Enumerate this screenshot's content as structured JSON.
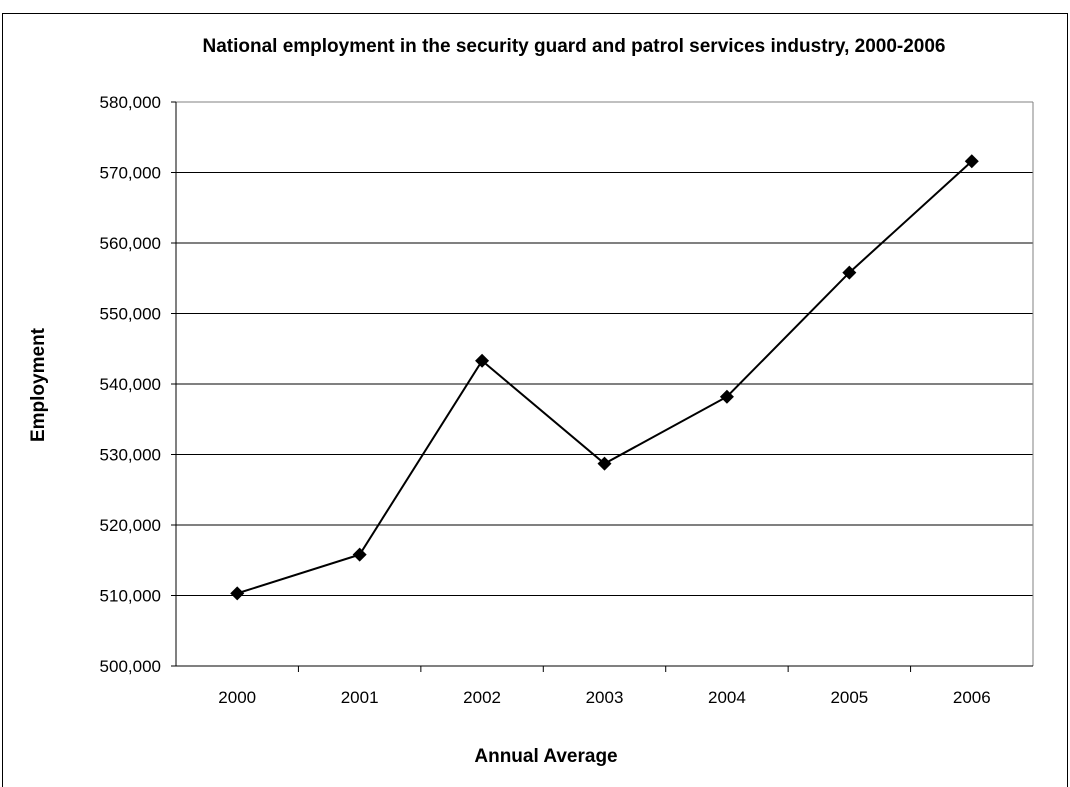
{
  "chart_data": {
    "type": "line",
    "title": "National employment in the security guard and patrol services industry, 2000-2006",
    "xlabel": "Annual Average",
    "ylabel": "Employment",
    "categories": [
      "2000",
      "2001",
      "2002",
      "2003",
      "2004",
      "2005",
      "2006"
    ],
    "series": [
      {
        "values": [
          510300,
          515800,
          543300,
          528700,
          538200,
          555800,
          571600
        ]
      }
    ],
    "ylim": [
      500000,
      580000
    ],
    "y_ticks": [
      "500,000",
      "510,000",
      "520,000",
      "530,000",
      "540,000",
      "550,000",
      "560,000",
      "570,000",
      "580,000"
    ],
    "grid": true,
    "marker": "diamond",
    "line_color": "#000000",
    "legend": "none"
  }
}
